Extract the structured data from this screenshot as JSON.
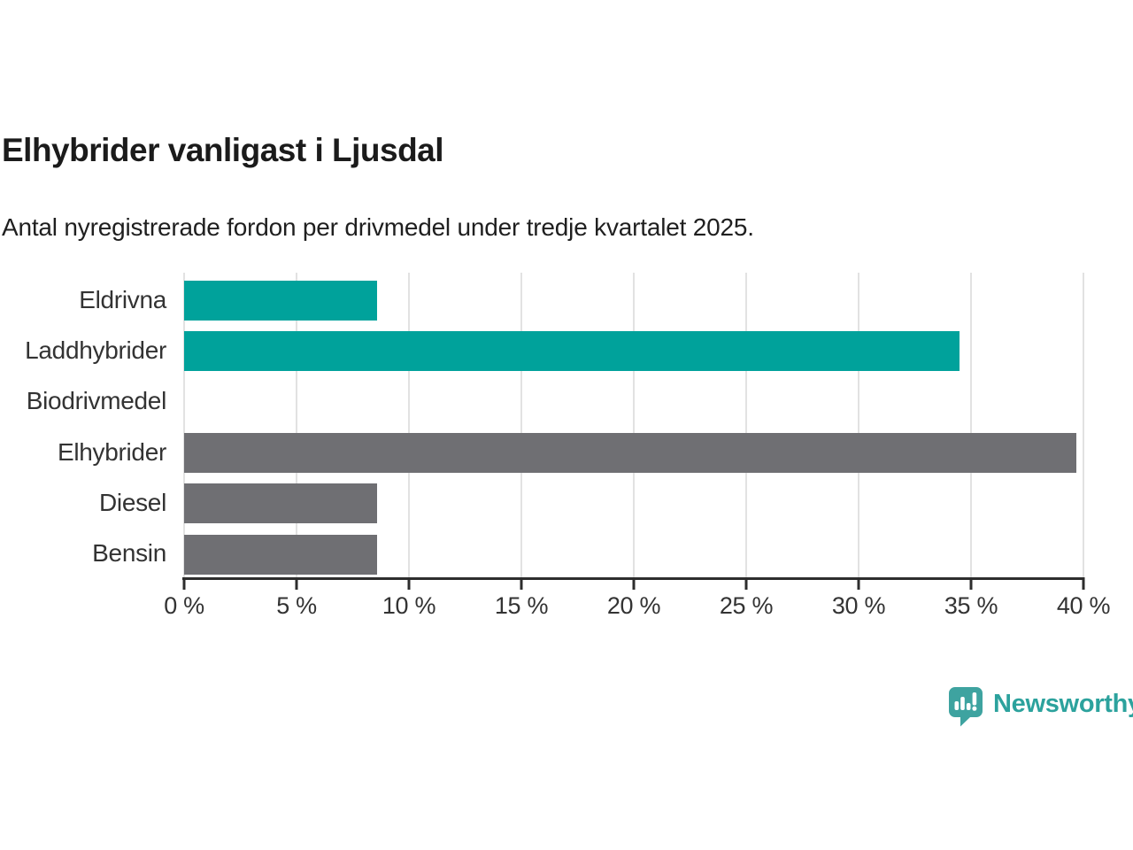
{
  "chart_data": {
    "type": "bar",
    "orientation": "horizontal",
    "title": "Elhybrider vanligast i Ljusdal",
    "subtitle": "Antal nyregistrerade fordon per drivmedel under tredje kvartalet 2025.",
    "categories": [
      "Eldrivna",
      "Laddhybrider",
      "Biodrivmedel",
      "Elhybrider",
      "Diesel",
      "Bensin"
    ],
    "values": [
      8.6,
      34.5,
      0,
      39.7,
      8.6,
      8.6
    ],
    "unit": "%",
    "xlabel": "",
    "ylabel": "",
    "xlim": [
      0,
      40
    ],
    "xticks": [
      "0 %",
      "5 %",
      "10 %",
      "15 %",
      "20 %",
      "25 %",
      "30 %",
      "35 %",
      "40 %"
    ],
    "grid": true,
    "legend": false,
    "bar_colors": [
      "#00a29b",
      "#00a29b",
      "#6f6f73",
      "#6f6f73",
      "#6f6f73",
      "#6f6f73"
    ],
    "colors": {
      "teal": "#00a29b",
      "gray": "#6f6f73",
      "gridline": "#e2e2e2",
      "axis": "#2d2d2d",
      "tick_text": "#333333",
      "title_text": "#1b1b1b"
    }
  },
  "branding": {
    "logo_text": "Newsworthy",
    "logo_text_color": "#2ca29d",
    "logo_icon": "newsworthy-speech-bubble-bar-chart-icon",
    "logo_icon_color": "#3ea3a0"
  }
}
